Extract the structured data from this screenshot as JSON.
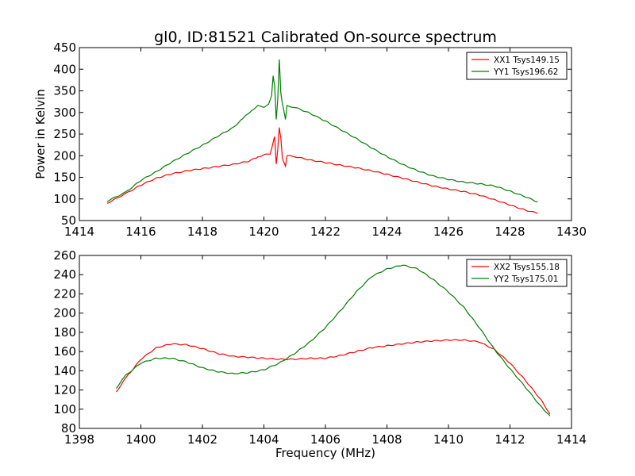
{
  "title": "gl0, ID:81521 Calibrated On-source spectrum",
  "colors": {
    "red": "#ff0000",
    "green": "#007f00"
  },
  "chart_data": [
    {
      "type": "line",
      "xlabel": "",
      "ylabel": "Power in Kelvin",
      "xlim": [
        1414,
        1430
      ],
      "ylim": [
        50,
        450
      ],
      "xticks": [
        "1414",
        "1416",
        "1418",
        "1420",
        "1422",
        "1424",
        "1426",
        "1428",
        "1430"
      ],
      "yticks": [
        "50",
        "100",
        "150",
        "200",
        "250",
        "300",
        "350",
        "400",
        "450"
      ],
      "legend_position": "top-right",
      "series": [
        {
          "name": "XX1 Tsys149.15",
          "color": "#ff0000",
          "points": [
            [
              1414.9,
              90
            ],
            [
              1415.5,
              112
            ],
            [
              1416,
              132
            ],
            [
              1416.5,
              148
            ],
            [
              1417,
              158
            ],
            [
              1417.5,
              165
            ],
            [
              1418,
              170
            ],
            [
              1418.5,
              175
            ],
            [
              1419,
              180
            ],
            [
              1419.5,
              187
            ],
            [
              1419.8,
              197
            ],
            [
              1420.0,
              202
            ],
            [
              1420.2,
              204
            ],
            [
              1420.3,
              230
            ],
            [
              1420.35,
              245
            ],
            [
              1420.4,
              180
            ],
            [
              1420.45,
              215
            ],
            [
              1420.5,
              266
            ],
            [
              1420.55,
              240
            ],
            [
              1420.6,
              195
            ],
            [
              1420.7,
              175
            ],
            [
              1420.75,
              200
            ],
            [
              1421,
              198
            ],
            [
              1421.5,
              190
            ],
            [
              1422,
              184
            ],
            [
              1422.5,
              178
            ],
            [
              1423,
              172
            ],
            [
              1423.5,
              165
            ],
            [
              1424,
              157
            ],
            [
              1424.5,
              148
            ],
            [
              1425,
              139
            ],
            [
              1425.5,
              130
            ],
            [
              1426,
              123
            ],
            [
              1426.5,
              117
            ],
            [
              1427,
              109
            ],
            [
              1427.5,
              98
            ],
            [
              1428,
              86
            ],
            [
              1428.5,
              74
            ],
            [
              1428.9,
              67
            ]
          ]
        },
        {
          "name": "YY1 Tsys196.62",
          "color": "#007f00",
          "points": [
            [
              1414.9,
              95
            ],
            [
              1415.5,
              115
            ],
            [
              1416,
              143
            ],
            [
              1416.5,
              163
            ],
            [
              1417,
              185
            ],
            [
              1417.5,
              205
            ],
            [
              1418,
              224
            ],
            [
              1418.5,
              245
            ],
            [
              1419,
              265
            ],
            [
              1419.3,
              285
            ],
            [
              1419.6,
              305
            ],
            [
              1419.8,
              315
            ],
            [
              1420.0,
              313
            ],
            [
              1420.15,
              318
            ],
            [
              1420.25,
              340
            ],
            [
              1420.3,
              385
            ],
            [
              1420.35,
              360
            ],
            [
              1420.4,
              285
            ],
            [
              1420.45,
              330
            ],
            [
              1420.5,
              423
            ],
            [
              1420.55,
              345
            ],
            [
              1420.6,
              320
            ],
            [
              1420.7,
              285
            ],
            [
              1420.75,
              315
            ],
            [
              1421,
              312
            ],
            [
              1421.5,
              298
            ],
            [
              1422,
              280
            ],
            [
              1422.5,
              260
            ],
            [
              1423,
              240
            ],
            [
              1423.5,
              218
            ],
            [
              1424,
              198
            ],
            [
              1424.5,
              180
            ],
            [
              1425,
              165
            ],
            [
              1425.5,
              153
            ],
            [
              1426,
              145
            ],
            [
              1426.5,
              139
            ],
            [
              1427,
              135
            ],
            [
              1427.5,
              130
            ],
            [
              1428,
              118
            ],
            [
              1428.5,
              105
            ],
            [
              1428.9,
              93
            ]
          ]
        }
      ]
    },
    {
      "type": "line",
      "xlabel": "Frequency (MHz)",
      "ylabel": "",
      "xlim": [
        1398,
        1414
      ],
      "ylim": [
        80,
        260
      ],
      "xticks": [
        "1398",
        "1400",
        "1402",
        "1404",
        "1406",
        "1408",
        "1410",
        "1412",
        "1414"
      ],
      "yticks": [
        "80",
        "100",
        "120",
        "140",
        "160",
        "180",
        "200",
        "220",
        "240",
        "260"
      ],
      "legend_position": "top-right",
      "series": [
        {
          "name": "XX2 Tsys155.18",
          "color": "#ff0000",
          "points": [
            [
              1399.2,
              118
            ],
            [
              1399.5,
              132
            ],
            [
              1400,
              152
            ],
            [
              1400.5,
              164
            ],
            [
              1401,
              168
            ],
            [
              1401.5,
              167
            ],
            [
              1402,
              163
            ],
            [
              1402.5,
              158
            ],
            [
              1403,
              155
            ],
            [
              1403.5,
              154
            ],
            [
              1404,
              153
            ],
            [
              1404.5,
              152
            ],
            [
              1405,
              152
            ],
            [
              1405.5,
              153
            ],
            [
              1406,
              153
            ],
            [
              1406.5,
              156
            ],
            [
              1407,
              160
            ],
            [
              1407.5,
              164
            ],
            [
              1408,
              166
            ],
            [
              1408.5,
              168
            ],
            [
              1409,
              170
            ],
            [
              1409.5,
              171
            ],
            [
              1410,
              172
            ],
            [
              1410.5,
              172
            ],
            [
              1411,
              170
            ],
            [
              1411.5,
              162
            ],
            [
              1412,
              148
            ],
            [
              1412.5,
              130
            ],
            [
              1413,
              110
            ],
            [
              1413.3,
              95
            ]
          ]
        },
        {
          "name": "YY2 Tsys175.01",
          "color": "#007f00",
          "points": [
            [
              1399.2,
              122
            ],
            [
              1399.5,
              135
            ],
            [
              1400,
              148
            ],
            [
              1400.5,
              153
            ],
            [
              1401,
              153
            ],
            [
              1401.5,
              149
            ],
            [
              1402,
              143
            ],
            [
              1402.5,
              139
            ],
            [
              1403,
              137
            ],
            [
              1403.5,
              138
            ],
            [
              1404,
              141
            ],
            [
              1404.5,
              148
            ],
            [
              1405,
              158
            ],
            [
              1405.5,
              170
            ],
            [
              1406,
              185
            ],
            [
              1406.5,
              203
            ],
            [
              1407,
              222
            ],
            [
              1407.5,
              238
            ],
            [
              1408,
              246
            ],
            [
              1408.5,
              250
            ],
            [
              1409,
              246
            ],
            [
              1409.5,
              235
            ],
            [
              1410,
              222
            ],
            [
              1410.5,
              206
            ],
            [
              1411,
              185
            ],
            [
              1411.5,
              162
            ],
            [
              1412,
              142
            ],
            [
              1412.5,
              123
            ],
            [
              1413,
              103
            ],
            [
              1413.3,
              93
            ]
          ]
        }
      ]
    }
  ]
}
